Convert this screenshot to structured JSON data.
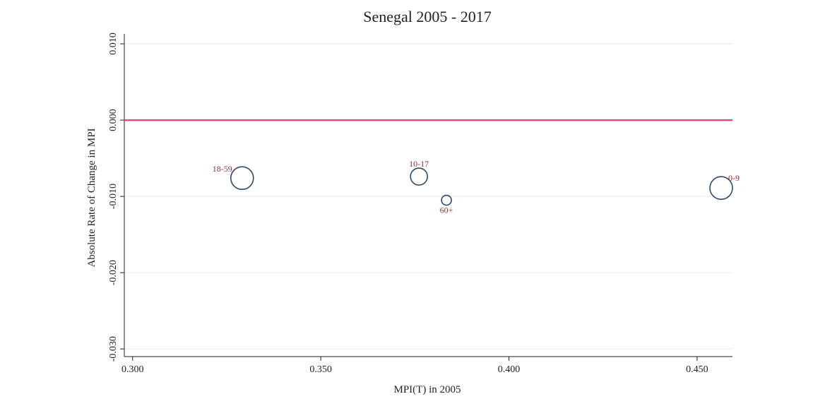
{
  "chart_data": {
    "type": "scatter",
    "title": "Senegal 2005 - 2017",
    "x_label": "MPI(T) in 2005",
    "y_label": "Absolute Rate of Change in MPI",
    "labels": [
      "18-59",
      "10-17",
      "60+",
      "0-9"
    ],
    "x": [
      0.3291,
      0.3761,
      0.3834,
      0.4564
    ],
    "values": [
      -0.0076,
      -0.0074,
      -0.0105,
      -0.0089
    ],
    "sizes": [
      256,
      144,
      49,
      256
    ],
    "color": "#2e4a6b",
    "label_color": "#8b2e2e",
    "xlim": [
      0.2978,
      0.4594
    ],
    "xticks": [
      {
        "value": 0.3,
        "label": "0.300"
      },
      {
        "value": 0.35,
        "label": "0.350"
      },
      {
        "value": 0.4,
        "label": "0.400"
      },
      {
        "value": 0.45,
        "label": "0.450"
      }
    ],
    "ylim": [
      -0.031,
      0.0113
    ],
    "yticks": [
      {
        "value": -0.03,
        "label": "-0.030"
      },
      {
        "value": -0.02,
        "label": "-0.020"
      },
      {
        "value": -0.01,
        "label": "-0.010"
      },
      {
        "value": 0,
        "label": "0.000"
      },
      {
        "value": 0.01,
        "label": "0.010"
      }
    ],
    "grid": true,
    "reference_line": {
      "value": 0,
      "color": "#d9536f"
    }
  }
}
